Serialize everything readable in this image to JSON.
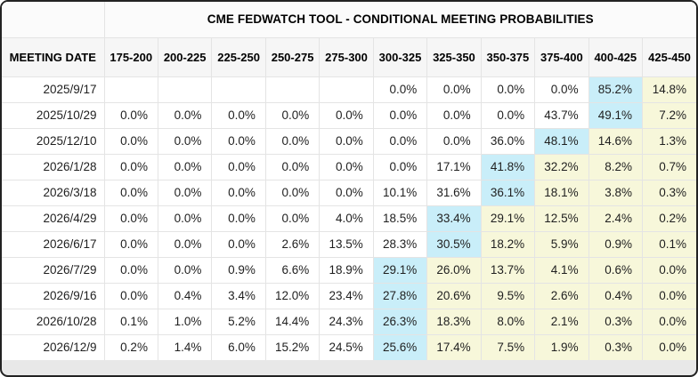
{
  "title": "CME FEDWATCH TOOL - CONDITIONAL MEETING PROBABILITIES",
  "table": {
    "date_header": "MEETING DATE",
    "rate_headers": [
      "175-200",
      "200-225",
      "225-250",
      "250-275",
      "275-300",
      "300-325",
      "325-350",
      "350-375",
      "375-400",
      "400-425",
      "425-450"
    ],
    "rows": [
      {
        "date": "2025/9/17",
        "values": [
          "",
          "",
          "",
          "",
          "",
          "0.0%",
          "0.0%",
          "0.0%",
          "0.0%",
          "85.2%",
          "14.8%"
        ],
        "highlight": [
          "",
          "",
          "",
          "",
          "",
          "",
          "",
          "",
          "",
          "b",
          "y"
        ]
      },
      {
        "date": "2025/10/29",
        "values": [
          "0.0%",
          "0.0%",
          "0.0%",
          "0.0%",
          "0.0%",
          "0.0%",
          "0.0%",
          "0.0%",
          "43.7%",
          "49.1%",
          "7.2%"
        ],
        "highlight": [
          "",
          "",
          "",
          "",
          "",
          "",
          "",
          "",
          "",
          "b",
          "y"
        ]
      },
      {
        "date": "2025/12/10",
        "values": [
          "0.0%",
          "0.0%",
          "0.0%",
          "0.0%",
          "0.0%",
          "0.0%",
          "0.0%",
          "36.0%",
          "48.1%",
          "14.6%",
          "1.3%"
        ],
        "highlight": [
          "",
          "",
          "",
          "",
          "",
          "",
          "",
          "",
          "b",
          "y",
          "y"
        ]
      },
      {
        "date": "2026/1/28",
        "values": [
          "0.0%",
          "0.0%",
          "0.0%",
          "0.0%",
          "0.0%",
          "0.0%",
          "17.1%",
          "41.8%",
          "32.2%",
          "8.2%",
          "0.7%"
        ],
        "highlight": [
          "",
          "",
          "",
          "",
          "",
          "",
          "",
          "b",
          "y",
          "y",
          "y"
        ]
      },
      {
        "date": "2026/3/18",
        "values": [
          "0.0%",
          "0.0%",
          "0.0%",
          "0.0%",
          "0.0%",
          "10.1%",
          "31.6%",
          "36.1%",
          "18.1%",
          "3.8%",
          "0.3%"
        ],
        "highlight": [
          "",
          "",
          "",
          "",
          "",
          "",
          "",
          "b",
          "y",
          "y",
          "y"
        ]
      },
      {
        "date": "2026/4/29",
        "values": [
          "0.0%",
          "0.0%",
          "0.0%",
          "0.0%",
          "4.0%",
          "18.5%",
          "33.4%",
          "29.1%",
          "12.5%",
          "2.4%",
          "0.2%"
        ],
        "highlight": [
          "",
          "",
          "",
          "",
          "",
          "",
          "b",
          "y",
          "y",
          "y",
          "y"
        ]
      },
      {
        "date": "2026/6/17",
        "values": [
          "0.0%",
          "0.0%",
          "0.0%",
          "2.6%",
          "13.5%",
          "28.3%",
          "30.5%",
          "18.2%",
          "5.9%",
          "0.9%",
          "0.1%"
        ],
        "highlight": [
          "",
          "",
          "",
          "",
          "",
          "",
          "b",
          "y",
          "y",
          "y",
          "y"
        ]
      },
      {
        "date": "2026/7/29",
        "values": [
          "0.0%",
          "0.0%",
          "0.9%",
          "6.6%",
          "18.9%",
          "29.1%",
          "26.0%",
          "13.7%",
          "4.1%",
          "0.6%",
          "0.0%"
        ],
        "highlight": [
          "",
          "",
          "",
          "",
          "",
          "b",
          "y",
          "y",
          "y",
          "y",
          "y"
        ]
      },
      {
        "date": "2026/9/16",
        "values": [
          "0.0%",
          "0.4%",
          "3.4%",
          "12.0%",
          "23.4%",
          "27.8%",
          "20.6%",
          "9.5%",
          "2.6%",
          "0.4%",
          "0.0%"
        ],
        "highlight": [
          "",
          "",
          "",
          "",
          "",
          "b",
          "y",
          "y",
          "y",
          "y",
          "y"
        ]
      },
      {
        "date": "2026/10/28",
        "values": [
          "0.1%",
          "1.0%",
          "5.2%",
          "14.4%",
          "24.3%",
          "26.3%",
          "18.3%",
          "8.0%",
          "2.1%",
          "0.3%",
          "0.0%"
        ],
        "highlight": [
          "",
          "",
          "",
          "",
          "",
          "b",
          "y",
          "y",
          "y",
          "y",
          "y"
        ]
      },
      {
        "date": "2026/12/9",
        "values": [
          "0.2%",
          "1.4%",
          "6.0%",
          "15.2%",
          "24.5%",
          "25.6%",
          "17.4%",
          "7.5%",
          "1.9%",
          "0.3%",
          "0.0%"
        ],
        "highlight": [
          "",
          "",
          "",
          "",
          "",
          "b",
          "y",
          "y",
          "y",
          "y",
          "y"
        ]
      }
    ]
  },
  "colors": {
    "highlight_blue": "#c9eef9",
    "highlight_yellow": "#f7f7da",
    "header_bg": "#f6f6f6"
  }
}
